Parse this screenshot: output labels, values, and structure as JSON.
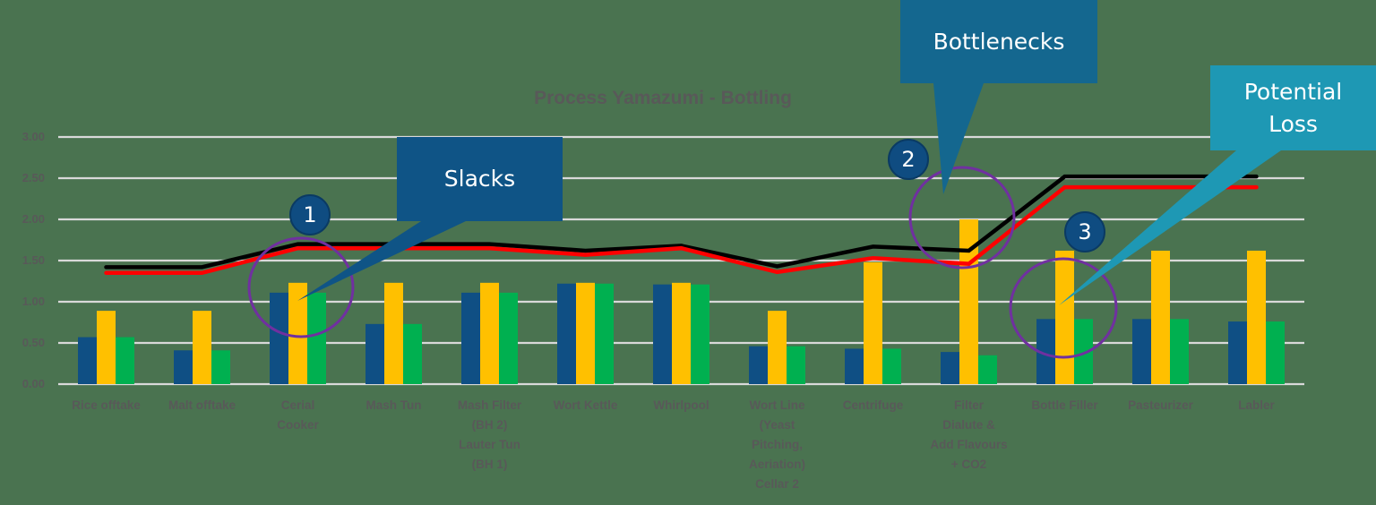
{
  "chart_data": {
    "type": "bar",
    "title": "Process Yamazumi - Bottling",
    "xlabel": "",
    "ylabel": "",
    "ylim": [
      0,
      3
    ],
    "yticks": [
      "0.00",
      "0.50",
      "1.00",
      "1.50",
      "2.00",
      "2.50",
      "3.00"
    ],
    "grid": true,
    "legend": "none",
    "categories": [
      "Rice offtake",
      "Malt offtake",
      "Cerial\nCooker",
      "Mash Tun",
      "Mash Filter\n(BH 2)\nLauter Tun\n(BH 1)",
      "Wort Kettle",
      "Whirlpool",
      "Wort Line\n(Yeast\nPitching,\nAeriation)\nCellar 2",
      "Centrifuge",
      "Filter\nDialute &\nAdd Flavours\n+ CO2",
      "Bottle Filler",
      "Pasteurizer",
      "Labler"
    ],
    "series": [
      {
        "name": "Series 1 (navy bar)",
        "kind": "bar",
        "color": "#0F4F84",
        "values": [
          0.57,
          0.41,
          1.11,
          0.73,
          1.11,
          1.22,
          1.21,
          0.46,
          0.43,
          0.39,
          0.79,
          0.79,
          0.76
        ]
      },
      {
        "name": "Series 2 (yellow bar)",
        "kind": "bar",
        "color": "#FFC000",
        "values": [
          0.89,
          0.89,
          1.23,
          1.23,
          1.23,
          1.23,
          1.23,
          0.89,
          1.48,
          2.0,
          1.62,
          1.62,
          1.62
        ]
      },
      {
        "name": "Series 3 (green bar)",
        "kind": "bar",
        "color": "#00B050",
        "values": [
          0.57,
          0.41,
          1.11,
          0.73,
          1.11,
          1.22,
          1.21,
          0.46,
          0.43,
          0.35,
          0.79,
          0.79,
          0.76
        ]
      },
      {
        "name": "Series 4 (black line)",
        "kind": "line",
        "color": "#000000",
        "values": [
          1.42,
          1.42,
          1.7,
          1.7,
          1.7,
          1.62,
          1.68,
          1.43,
          1.67,
          1.62,
          2.52,
          2.52,
          2.52
        ]
      },
      {
        "name": "Series 5 (red line)",
        "kind": "line",
        "color": "#FF0000",
        "values": [
          1.35,
          1.35,
          1.65,
          1.65,
          1.65,
          1.57,
          1.65,
          1.36,
          1.53,
          1.46,
          2.39,
          2.39,
          2.39
        ]
      }
    ],
    "annotations": [
      {
        "label": "Slacks",
        "badge": "1",
        "target_category": "Cerial Cooker"
      },
      {
        "label": "Bottlenecks",
        "badge": "2",
        "target_category": "Filter Dialute & Add Flavours + CO2"
      },
      {
        "label": "Potential Loss",
        "badge": "3",
        "target_category": "Bottle Filler"
      }
    ]
  },
  "callouts": {
    "slacks": {
      "text": "Slacks",
      "badge": "1",
      "color": "#0F5486"
    },
    "bottlenecks": {
      "text": "Bottlenecks",
      "badge": "2",
      "color": "#14678F"
    },
    "potential_loss": {
      "text": "Potential\nLoss",
      "badge": "3",
      "color": "#1E98B4"
    }
  },
  "colors": {
    "background": "#4A7350",
    "grid": "#D9D9D9",
    "text": "#595959",
    "ring": "#7030A0",
    "badge": "#0F4C81"
  }
}
